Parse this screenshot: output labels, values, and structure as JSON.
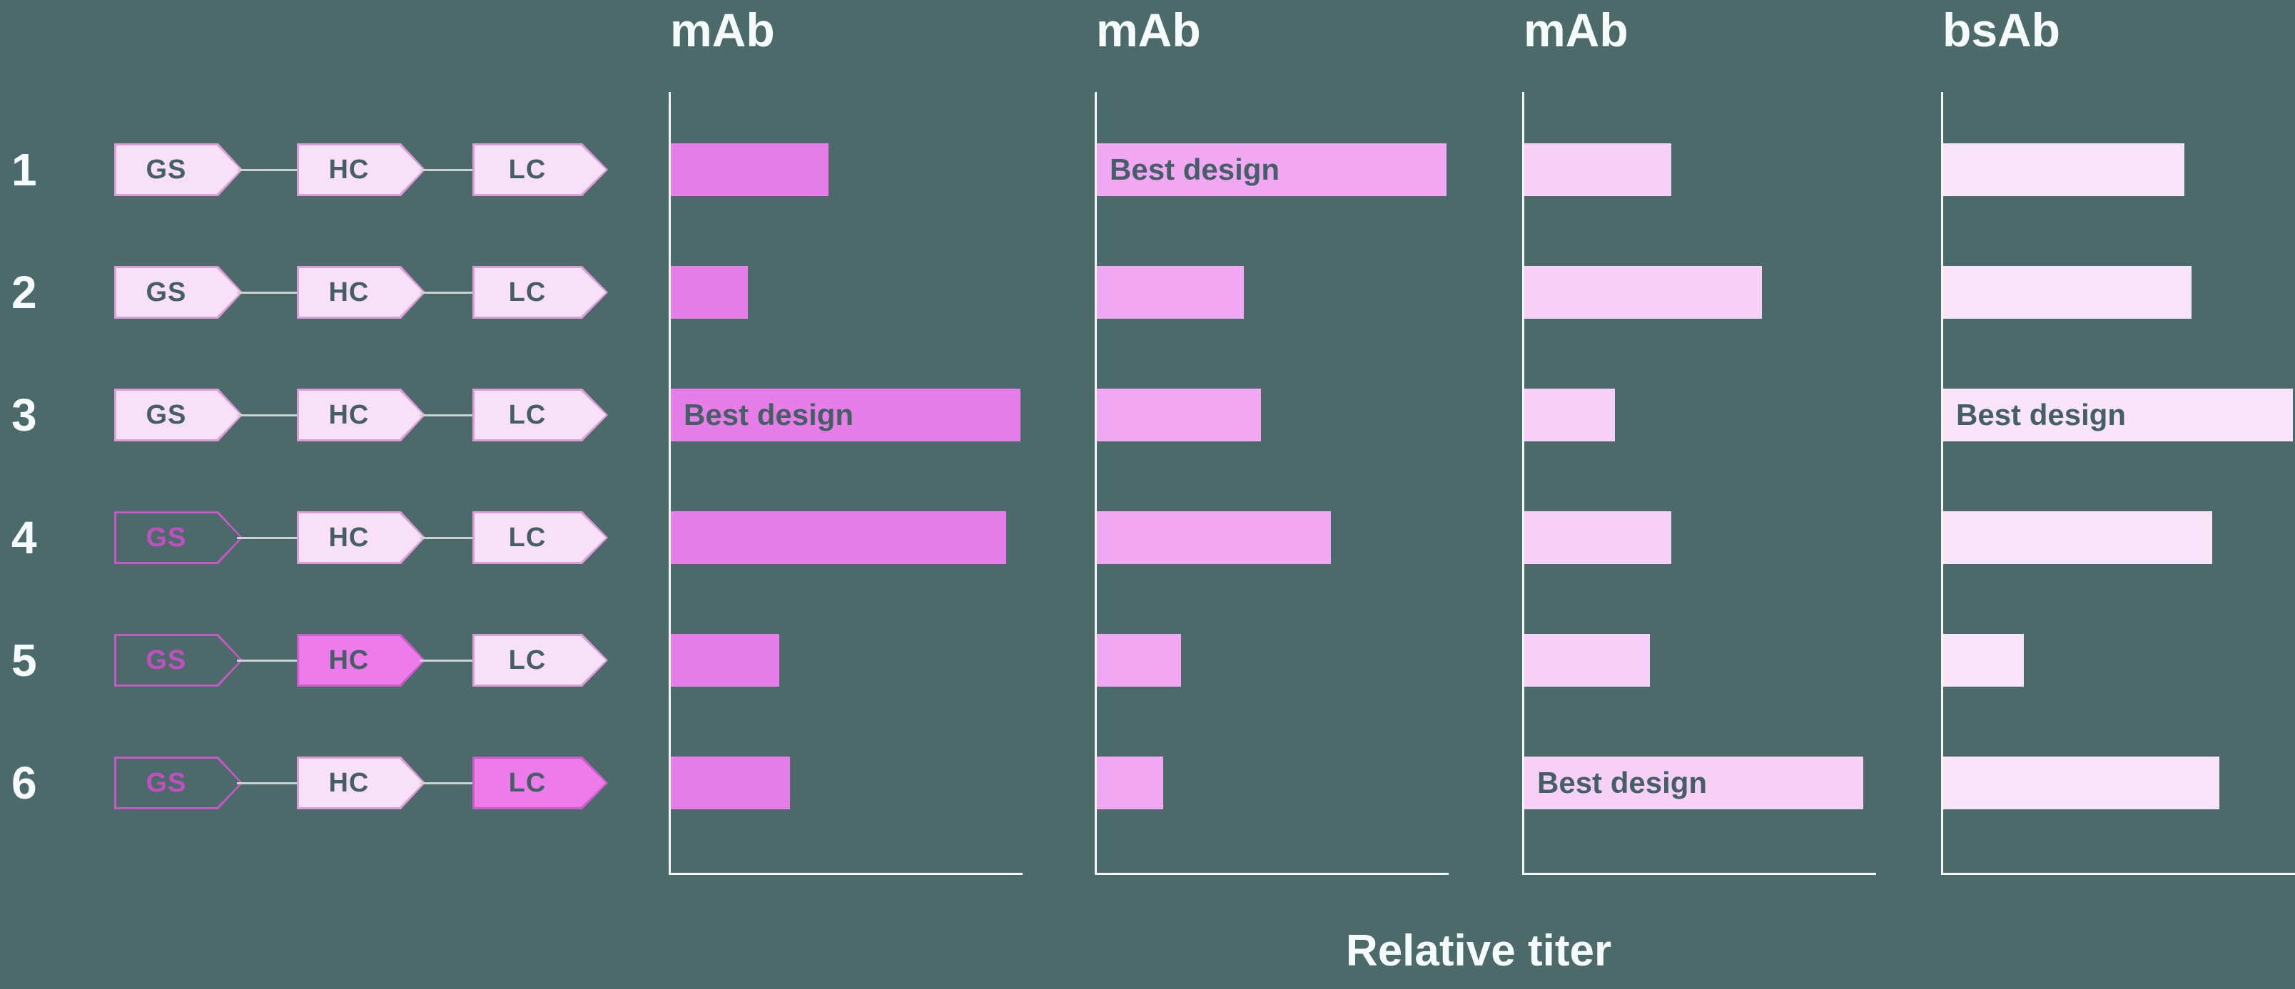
{
  "colors": {
    "background": "#4d6a6a",
    "axis": "#f2f6f6",
    "title_text": "#f5fafa",
    "row_number_text": "#f5fafa",
    "bar_label_text": "#455f66",
    "shape_text": "#455f66",
    "shape_light_fill": "#f8e1f8",
    "shape_light_border": "#dd9cd8",
    "shape_bright_fill": "#ee7bea",
    "shape_bright_border": "#c95ec9",
    "shape_outline_stroke": "#c459c4",
    "shape_outline_text": "#c050c0",
    "connector": "#c9d4d4"
  },
  "xlabel": "Relative titer",
  "best_design_label": "Best design",
  "rows": [
    {
      "num": "1",
      "segments": [
        {
          "label": "GS",
          "variant": "light"
        },
        {
          "label": "HC",
          "variant": "light"
        },
        {
          "label": "LC",
          "variant": "light"
        }
      ]
    },
    {
      "num": "2",
      "segments": [
        {
          "label": "GS",
          "variant": "light"
        },
        {
          "label": "HC",
          "variant": "light"
        },
        {
          "label": "LC",
          "variant": "light"
        }
      ]
    },
    {
      "num": "3",
      "segments": [
        {
          "label": "GS",
          "variant": "light"
        },
        {
          "label": "HC",
          "variant": "light"
        },
        {
          "label": "LC",
          "variant": "light"
        }
      ]
    },
    {
      "num": "4",
      "segments": [
        {
          "label": "GS",
          "variant": "outline"
        },
        {
          "label": "HC",
          "variant": "light"
        },
        {
          "label": "LC",
          "variant": "light"
        }
      ]
    },
    {
      "num": "5",
      "segments": [
        {
          "label": "GS",
          "variant": "outline"
        },
        {
          "label": "HC",
          "variant": "bright"
        },
        {
          "label": "LC",
          "variant": "light"
        }
      ]
    },
    {
      "num": "6",
      "segments": [
        {
          "label": "GS",
          "variant": "outline"
        },
        {
          "label": "HC",
          "variant": "light"
        },
        {
          "label": "LC",
          "variant": "bright"
        }
      ]
    }
  ],
  "panels": [
    {
      "title": "mAb",
      "bar_color": "#e77de7",
      "bars": [
        {
          "value": 0.45,
          "label": ""
        },
        {
          "value": 0.22,
          "label": ""
        },
        {
          "value": 1.0,
          "label": "Best design"
        },
        {
          "value": 0.96,
          "label": ""
        },
        {
          "value": 0.31,
          "label": ""
        },
        {
          "value": 0.34,
          "label": ""
        }
      ]
    },
    {
      "title": "mAb",
      "bar_color": "#f2a7f2",
      "bars": [
        {
          "value": 1.0,
          "label": "Best design"
        },
        {
          "value": 0.42,
          "label": ""
        },
        {
          "value": 0.47,
          "label": ""
        },
        {
          "value": 0.67,
          "label": ""
        },
        {
          "value": 0.24,
          "label": ""
        },
        {
          "value": 0.19,
          "label": ""
        }
      ]
    },
    {
      "title": "mAb",
      "bar_color": "#f7d0f7",
      "bars": [
        {
          "value": 0.42,
          "label": ""
        },
        {
          "value": 0.68,
          "label": ""
        },
        {
          "value": 0.26,
          "label": ""
        },
        {
          "value": 0.42,
          "label": ""
        },
        {
          "value": 0.36,
          "label": ""
        },
        {
          "value": 0.97,
          "label": "Best design"
        }
      ]
    },
    {
      "title": "bsAb",
      "bar_color": "#f9e4f9",
      "bars": [
        {
          "value": 0.69,
          "label": ""
        },
        {
          "value": 0.71,
          "label": ""
        },
        {
          "value": 1.0,
          "label": "Best design"
        },
        {
          "value": 0.77,
          "label": ""
        },
        {
          "value": 0.23,
          "label": ""
        },
        {
          "value": 0.79,
          "label": ""
        }
      ]
    }
  ],
  "chart_data": {
    "type": "bar",
    "orientation": "horizontal",
    "categories": [
      "1",
      "2",
      "3",
      "4",
      "5",
      "6"
    ],
    "series": [
      {
        "name": "mAb",
        "values": [
          0.45,
          0.22,
          1.0,
          0.96,
          0.31,
          0.34
        ],
        "best_design_category": "3"
      },
      {
        "name": "mAb",
        "values": [
          1.0,
          0.42,
          0.47,
          0.67,
          0.24,
          0.19
        ],
        "best_design_category": "1"
      },
      {
        "name": "mAb",
        "values": [
          0.42,
          0.68,
          0.26,
          0.42,
          0.36,
          0.97
        ],
        "best_design_category": "6"
      },
      {
        "name": "bsAb",
        "values": [
          0.69,
          0.71,
          1.0,
          0.77,
          0.23,
          0.79
        ],
        "best_design_category": "3"
      }
    ],
    "xlabel": "Relative titer",
    "xlim": [
      0,
      1
    ],
    "grid": false,
    "legend": false,
    "annotations": [
      "Best design"
    ],
    "row_constructs": [
      "GS(light)-HC(light)-LC(light)",
      "GS(light)-HC(light)-LC(light)",
      "GS(light)-HC(light)-LC(light)",
      "GS(outline)-HC(light)-LC(light)",
      "GS(outline)-HC(bright)-LC(light)",
      "GS(outline)-HC(light)-LC(bright)"
    ]
  }
}
